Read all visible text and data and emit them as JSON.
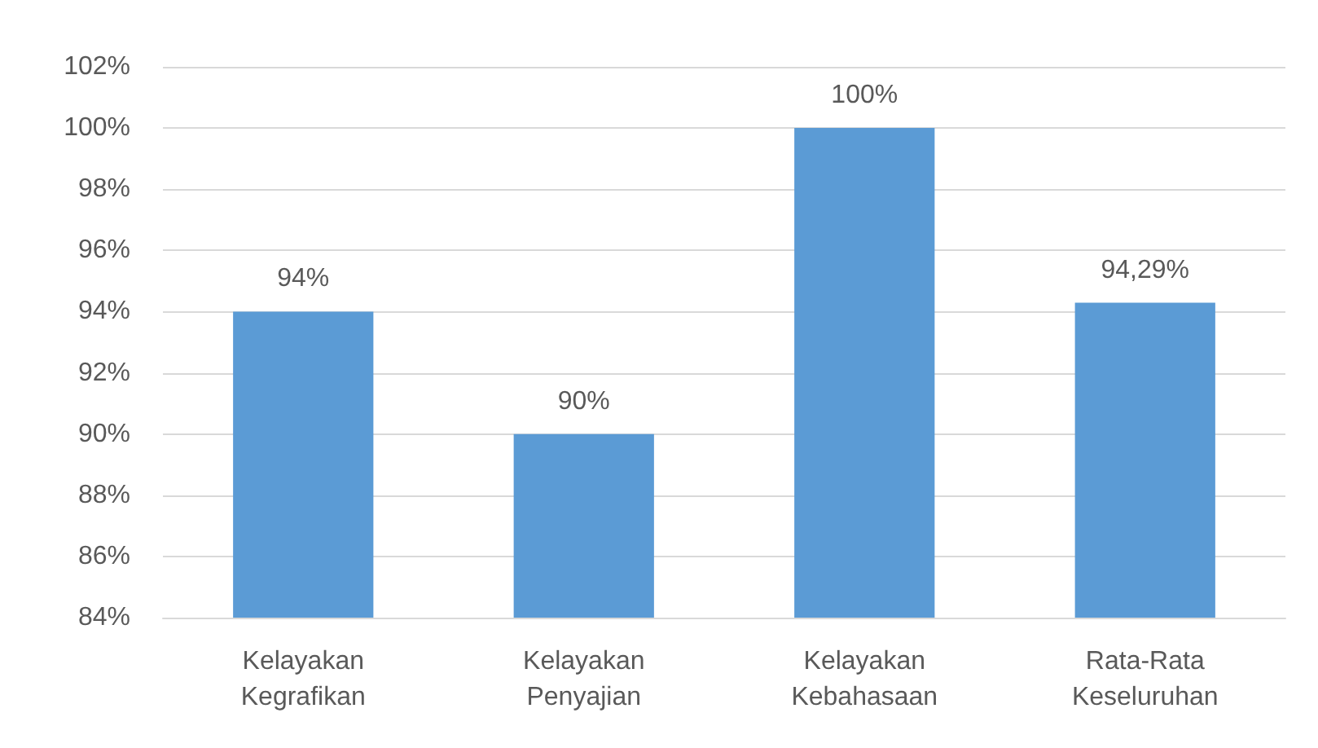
{
  "chart_data": {
    "type": "bar",
    "categories": [
      "Kelayakan\nKegrafikan",
      "Kelayakan\nPenyajian",
      "Kelayakan\nKebahasaan",
      "Rata-Rata\nKeseluruhan"
    ],
    "values": [
      94,
      90,
      100,
      94.29
    ],
    "value_labels": [
      "94%",
      "90%",
      "100%",
      "94,29%"
    ],
    "color": "#5b9bd5",
    "ylim": [
      84,
      102
    ],
    "yticks": [
      {
        "value": 84,
        "label": "84%"
      },
      {
        "value": 86,
        "label": "86%"
      },
      {
        "value": 88,
        "label": "88%"
      },
      {
        "value": 90,
        "label": "90%"
      },
      {
        "value": 92,
        "label": "92%"
      },
      {
        "value": 94,
        "label": "94%"
      },
      {
        "value": 96,
        "label": "96%"
      },
      {
        "value": 98,
        "label": "98%"
      },
      {
        "value": 100,
        "label": "100%"
      },
      {
        "value": 102,
        "label": "102%"
      }
    ],
    "grid": "y"
  }
}
